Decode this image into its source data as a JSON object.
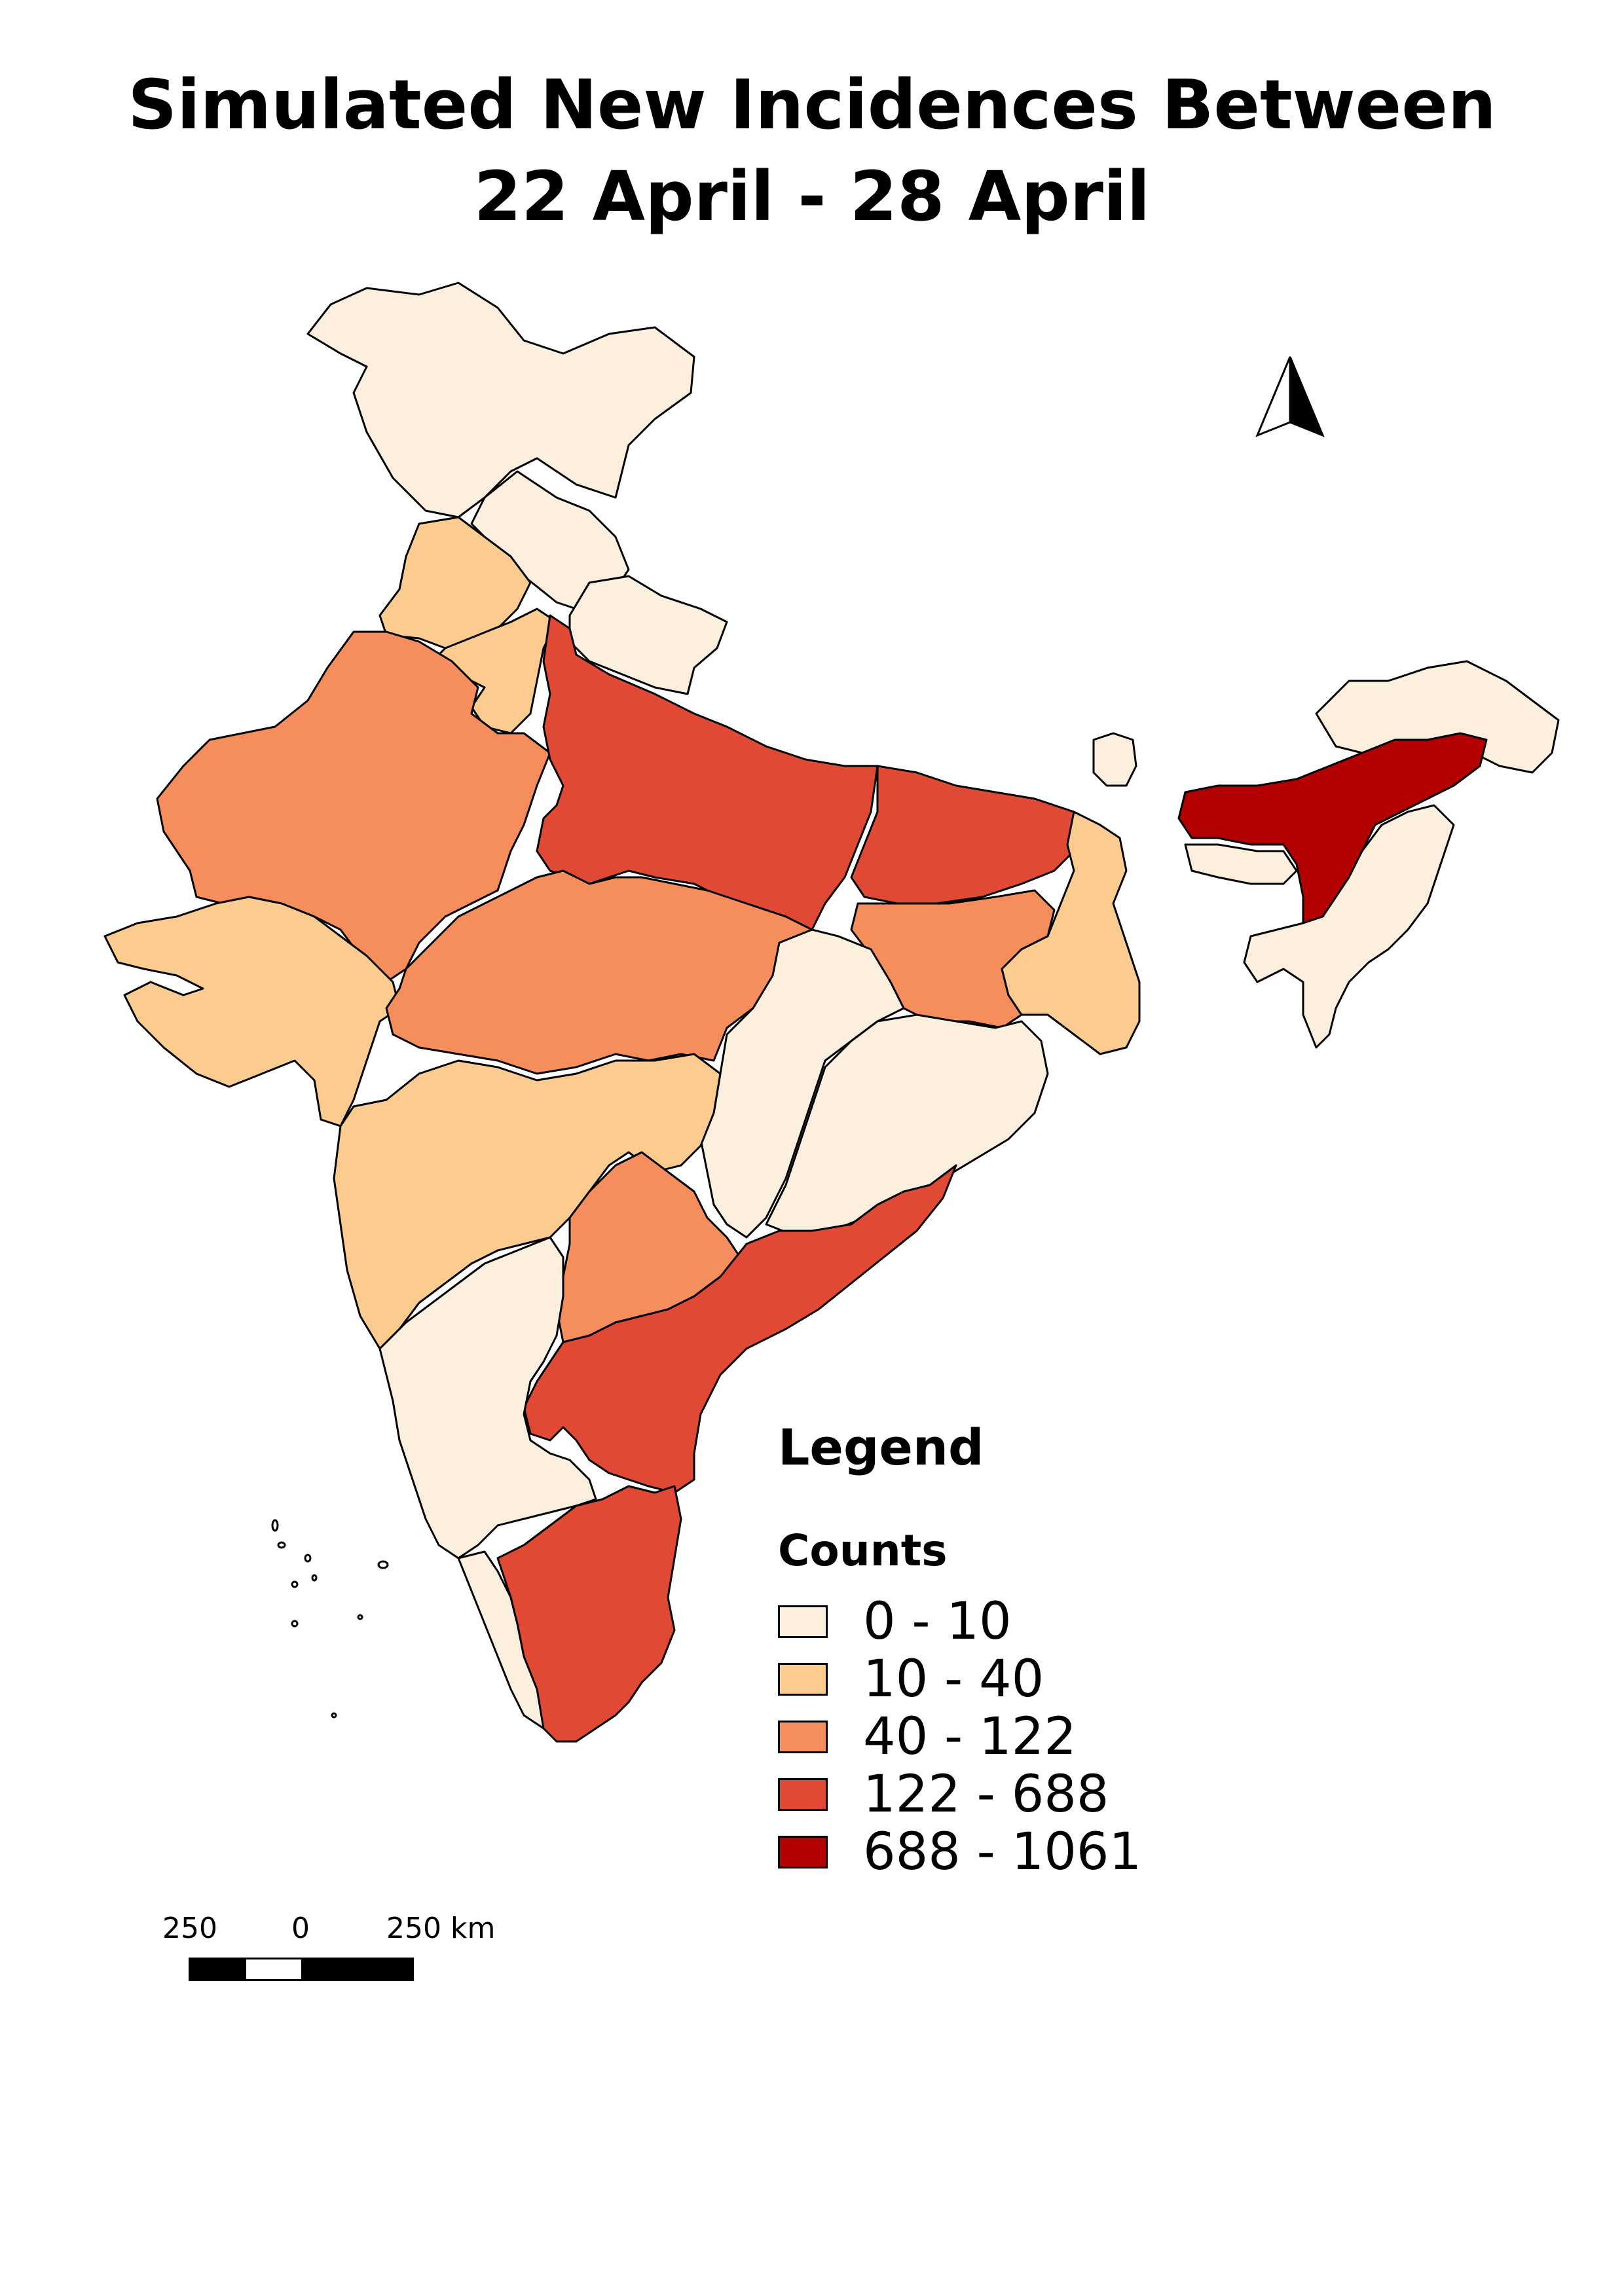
{
  "title": {
    "line1": "Simulated New Incidences Between",
    "line2": "22 April - 28 April"
  },
  "legend": {
    "title": "Legend",
    "subtitle": "Counts",
    "classes": [
      {
        "label": "0 - 10",
        "color": "#fdefde"
      },
      {
        "label": "10 - 40",
        "color": "#fbcb8f"
      },
      {
        "label": "40 - 122",
        "color": "#f68d5c"
      },
      {
        "label": "122 - 688",
        "color": "#e04a34"
      },
      {
        "label": "688 - 1061",
        "color": "#b30000"
      }
    ]
  },
  "scale_bar": {
    "left_label": "250",
    "center_label": "0",
    "right_label": "250 km"
  },
  "regions": [
    {
      "name": "Ladakh / Jammu & Kashmir",
      "class": 0
    },
    {
      "name": "Himachal Pradesh",
      "class": 0
    },
    {
      "name": "Uttarakhand",
      "class": 0
    },
    {
      "name": "Punjab",
      "class": 1
    },
    {
      "name": "Haryana",
      "class": 1
    },
    {
      "name": "Rajasthan",
      "class": 2
    },
    {
      "name": "Uttar Pradesh",
      "class": 3
    },
    {
      "name": "Bihar",
      "class": 3
    },
    {
      "name": "Gujarat",
      "class": 1
    },
    {
      "name": "Madhya Pradesh",
      "class": 2
    },
    {
      "name": "Jharkhand",
      "class": 2
    },
    {
      "name": "West Bengal",
      "class": 1
    },
    {
      "name": "Chhattisgarh",
      "class": 0
    },
    {
      "name": "Odisha",
      "class": 0
    },
    {
      "name": "Maharashtra",
      "class": 1
    },
    {
      "name": "Telangana",
      "class": 2
    },
    {
      "name": "Andhra Pradesh",
      "class": 3
    },
    {
      "name": "Karnataka",
      "class": 0
    },
    {
      "name": "Kerala",
      "class": 0
    },
    {
      "name": "Tamil Nadu",
      "class": 3
    },
    {
      "name": "Sikkim",
      "class": 0
    },
    {
      "name": "Assam",
      "class": 4
    },
    {
      "name": "Arunachal Pradesh",
      "class": 0
    },
    {
      "name": "Meghalaya",
      "class": 0
    },
    {
      "name": "Nagaland / Manipur / Mizoram / Tripura",
      "class": 0
    }
  ]
}
